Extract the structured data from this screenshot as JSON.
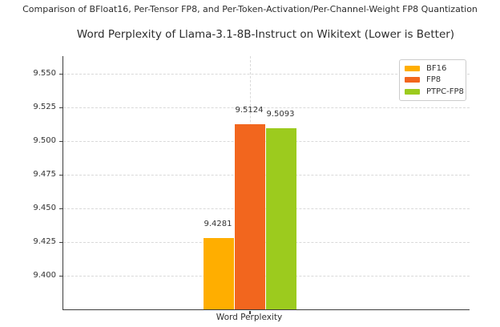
{
  "suptitle": "Comparison of BFloat16, Per-Tensor FP8, and Per-Token-Activation/Per-Channel-Weight FP8 Quantization",
  "chart_data": {
    "type": "bar",
    "title": "Word Perplexity of Llama-3.1-8B-Instruct on Wikitext (Lower is Better)",
    "xlabel": "",
    "ylabel": "",
    "categories": [
      "Word Perplexity"
    ],
    "series": [
      {
        "name": "BF16",
        "values": [
          9.4281
        ],
        "labels": [
          "9.4281"
        ],
        "color": "#FFAE00"
      },
      {
        "name": "FP8",
        "values": [
          9.5124
        ],
        "labels": [
          "9.5124"
        ],
        "color": "#F2661E"
      },
      {
        "name": "PTPC-FP8",
        "values": [
          9.5093
        ],
        "labels": [
          "9.5093"
        ],
        "color": "#9CCB1E"
      }
    ],
    "ylim": [
      9.375,
      9.563
    ],
    "yticks": [
      9.4,
      9.425,
      9.45,
      9.475,
      9.5,
      9.525,
      9.55
    ],
    "ytick_labels": [
      "9.400",
      "9.425",
      "9.450",
      "9.475",
      "9.500",
      "9.525",
      "9.550"
    ],
    "grid": true,
    "grid_style": "dashed",
    "legend": {
      "position": "upper right",
      "entries": [
        "BF16",
        "FP8",
        "PTPC-FP8"
      ]
    },
    "colors": {
      "grid": "#d9d9d9",
      "spine": "#3d3d3d",
      "title_text": "#2d2d2d",
      "tick_text": "#333333",
      "legend_border": "#cccccc",
      "background": "#ffffff"
    }
  }
}
